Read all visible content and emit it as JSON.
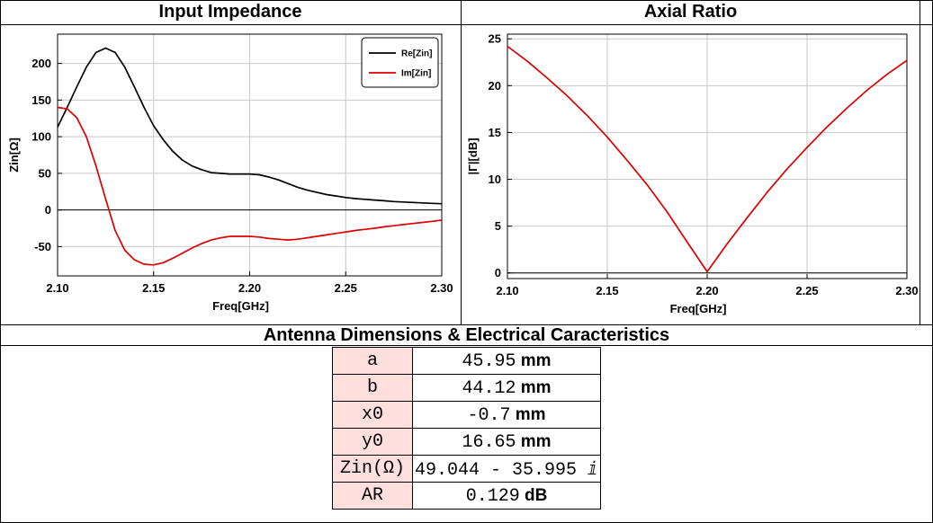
{
  "headers": {
    "left_title": "Input Impedance",
    "right_title": "Axial Ratio",
    "bottom_title": "Antenna Dimensions & Electrical Caracteristics"
  },
  "colors": {
    "re": "#000000",
    "im": "#dd0000",
    "grid": "#c8c8c8",
    "key_bg": "#ffdede"
  },
  "chart_data": [
    {
      "type": "line",
      "title": "Input Impedance",
      "xlabel": "Freq[GHz]",
      "ylabel": "Zin[Ω]",
      "xlim": [
        2.1,
        2.3
      ],
      "ylim": [
        -90,
        240
      ],
      "xticks": [
        "2.10",
        "2.15",
        "2.20",
        "2.25",
        "2.30"
      ],
      "yticks": [
        "-50",
        "0",
        "50",
        "100",
        "150",
        "200"
      ],
      "grid": true,
      "legend": "top-right",
      "series": [
        {
          "name": "Re[Zin]",
          "color": "#000000",
          "x": [
            2.1,
            2.105,
            2.11,
            2.115,
            2.12,
            2.125,
            2.13,
            2.135,
            2.14,
            2.145,
            2.15,
            2.155,
            2.16,
            2.165,
            2.17,
            2.175,
            2.18,
            2.185,
            2.19,
            2.195,
            2.2,
            2.205,
            2.21,
            2.215,
            2.22,
            2.225,
            2.23,
            2.235,
            2.24,
            2.245,
            2.25,
            2.255,
            2.26,
            2.265,
            2.27,
            2.275,
            2.28,
            2.285,
            2.29,
            2.295,
            2.3
          ],
          "y": [
            113,
            140,
            168,
            195,
            215,
            221,
            215,
            195,
            168,
            140,
            115,
            96,
            80,
            68,
            60,
            55,
            51,
            50,
            49,
            49,
            49,
            48,
            45,
            41,
            36,
            31,
            27,
            24,
            21,
            19,
            17,
            15.5,
            14.5,
            13.5,
            12.5,
            11.5,
            10.8,
            10.2,
            9.6,
            9.0,
            8.5
          ]
        },
        {
          "name": "Im[Zin]",
          "color": "#dd0000",
          "x": [
            2.1,
            2.105,
            2.11,
            2.115,
            2.12,
            2.125,
            2.13,
            2.135,
            2.14,
            2.145,
            2.15,
            2.155,
            2.16,
            2.165,
            2.17,
            2.175,
            2.18,
            2.185,
            2.19,
            2.195,
            2.2,
            2.205,
            2.21,
            2.215,
            2.22,
            2.225,
            2.23,
            2.235,
            2.24,
            2.245,
            2.25,
            2.255,
            2.26,
            2.265,
            2.27,
            2.275,
            2.28,
            2.285,
            2.29,
            2.295,
            2.3
          ],
          "y": [
            140,
            138,
            126,
            100,
            60,
            15,
            -28,
            -55,
            -68,
            -74,
            -75,
            -72,
            -66,
            -59,
            -52,
            -46,
            -41,
            -38,
            -36,
            -36,
            -36,
            -37,
            -39,
            -40,
            -41,
            -40,
            -38,
            -36,
            -34,
            -32,
            -30,
            -28,
            -26.5,
            -25,
            -23,
            -21.5,
            -20,
            -18.5,
            -17,
            -15.5,
            -14
          ]
        }
      ]
    },
    {
      "type": "line",
      "title": "Axial Ratio",
      "xlabel": "Freq[GHz]",
      "ylabel": "|Γ|[dB]",
      "xlim": [
        2.1,
        2.3
      ],
      "ylim": [
        -0.6,
        25.5
      ],
      "xticks": [
        "2.10",
        "2.15",
        "2.20",
        "2.25",
        "2.30"
      ],
      "yticks": [
        "0",
        "5",
        "10",
        "15",
        "20",
        "25"
      ],
      "grid": true,
      "series": [
        {
          "color": "#dd0000",
          "x": [
            2.1,
            2.11,
            2.12,
            2.13,
            2.14,
            2.15,
            2.16,
            2.17,
            2.18,
            2.19,
            2.2,
            2.21,
            2.22,
            2.23,
            2.24,
            2.25,
            2.26,
            2.27,
            2.28,
            2.29,
            2.3
          ],
          "y": [
            24.2,
            22.6,
            20.8,
            18.9,
            16.8,
            14.5,
            12.0,
            9.4,
            6.5,
            3.3,
            0.13,
            3.1,
            5.9,
            8.6,
            11.1,
            13.4,
            15.6,
            17.6,
            19.5,
            21.2,
            22.7
          ]
        }
      ]
    }
  ],
  "table": {
    "rows": [
      {
        "key": "a",
        "value": "45.95",
        "unit": "mm"
      },
      {
        "key": "b",
        "value": "44.12",
        "unit": "mm"
      },
      {
        "key": "x0",
        "value": "-0.7",
        "unit": "mm"
      },
      {
        "key": "y0",
        "value": "16.65",
        "unit": "mm"
      },
      {
        "key": "Zin(Ω)",
        "value": "49.044 - 35.995 ⅈ",
        "unit": ""
      },
      {
        "key": "AR",
        "value": "0.129",
        "unit": "dB"
      }
    ]
  }
}
